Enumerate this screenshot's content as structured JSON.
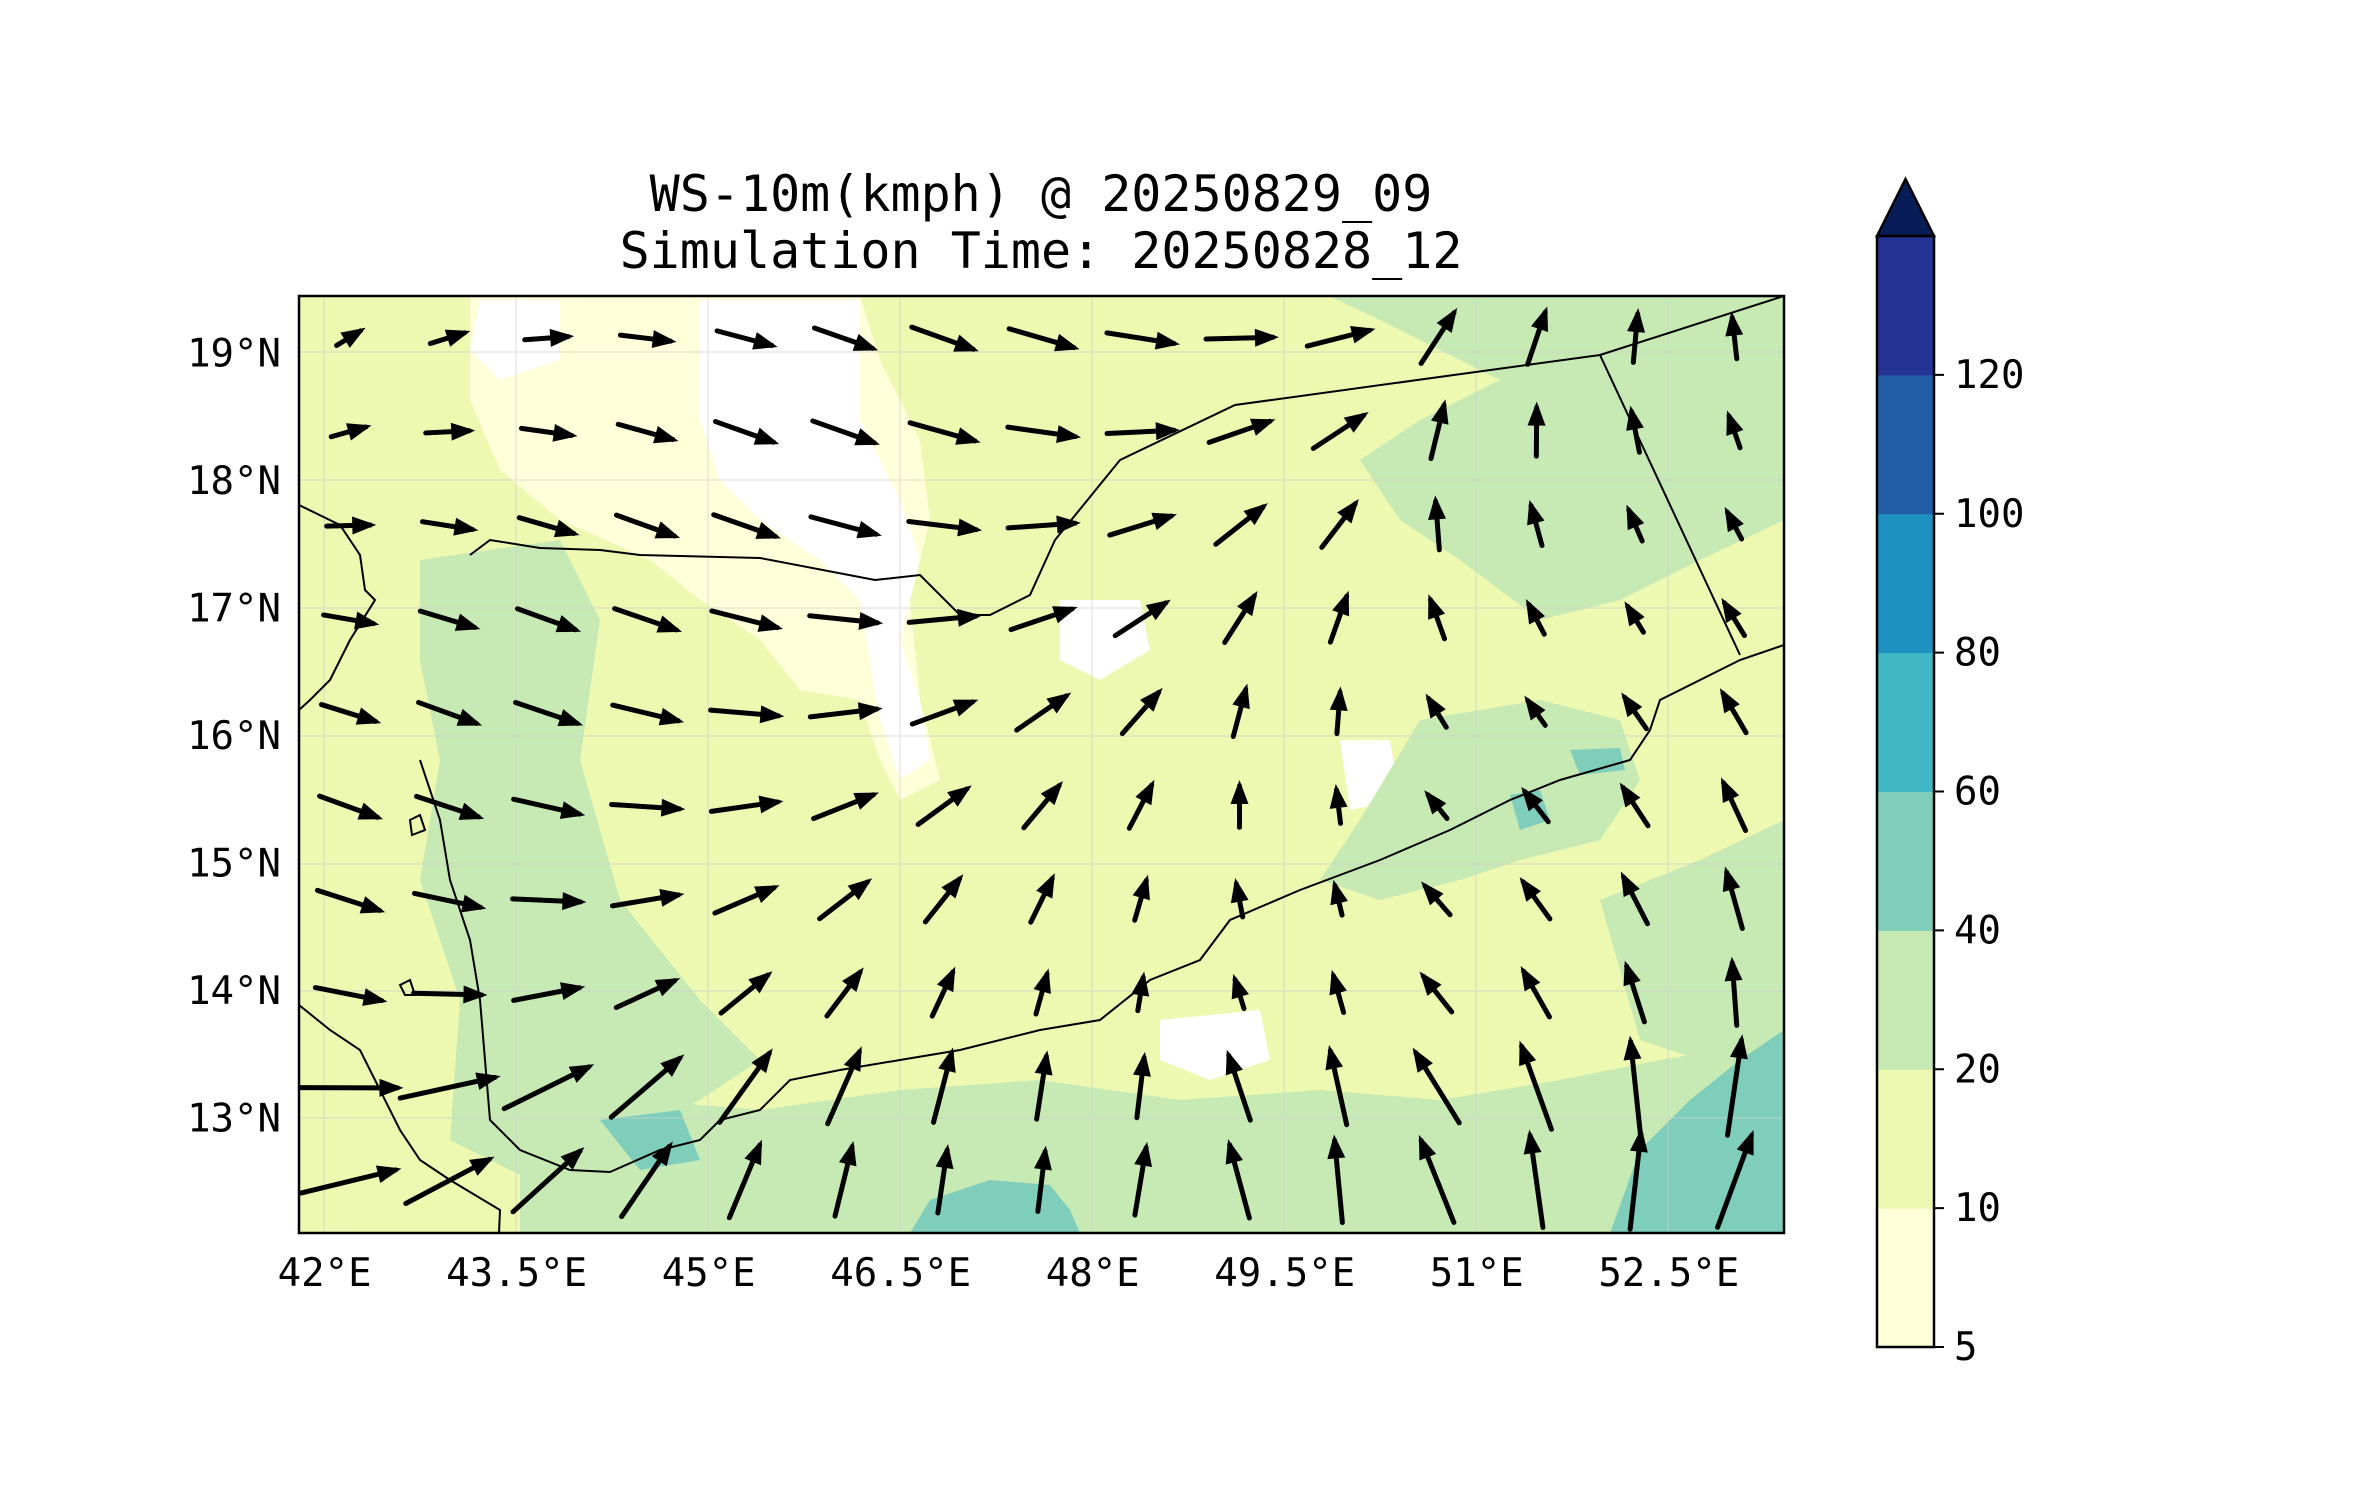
{
  "title": {
    "line1": "WS-10m(kmph) @ 20250829_09",
    "line2": "Simulation Time: 20250828_12"
  },
  "map": {
    "lon_range": [
      41.8,
      53.4
    ],
    "lat_range": [
      12.1,
      19.45
    ],
    "lon_tick_labels": [
      {
        "lon": 42.0,
        "label": "42°E"
      },
      {
        "lon": 43.5,
        "label": "43.5°E"
      },
      {
        "lon": 45.0,
        "label": "45°E"
      },
      {
        "lon": 46.5,
        "label": "46.5°E"
      },
      {
        "lon": 48.0,
        "label": "48°E"
      },
      {
        "lon": 49.5,
        "label": "49.5°E"
      },
      {
        "lon": 51.0,
        "label": "51°E"
      },
      {
        "lon": 52.5,
        "label": "52.5°E"
      }
    ],
    "lat_tick_labels": [
      {
        "lat": 13,
        "label": "13°N"
      },
      {
        "lat": 14,
        "label": "14°N"
      },
      {
        "lat": 15,
        "label": "15°N"
      },
      {
        "lat": 16,
        "label": "16°N"
      },
      {
        "lat": 17,
        "label": "17°N"
      },
      {
        "lat": 18,
        "label": "18°N"
      },
      {
        "lat": 19,
        "label": "19°N"
      }
    ],
    "gridlines": true,
    "field": "10 m wind speed (kmph) filled contours with wind vectors"
  },
  "colorbar": {
    "levels": [
      5,
      10,
      20,
      40,
      60,
      80,
      100,
      120
    ],
    "labels": [
      "5",
      "10",
      "20",
      "40",
      "60",
      "80",
      "100",
      "120"
    ],
    "colors": [
      "#ffffd9",
      "#edf8b1",
      "#c7e9b4",
      "#7fcdbb",
      "#41b6c4",
      "#1d91c0",
      "#225ea8",
      "#253494"
    ],
    "extend_color": "#081d58",
    "extend": "max"
  },
  "colors": {
    "coast": "#000000",
    "arrow": "#000000",
    "grid": "#cfcfcf"
  }
}
